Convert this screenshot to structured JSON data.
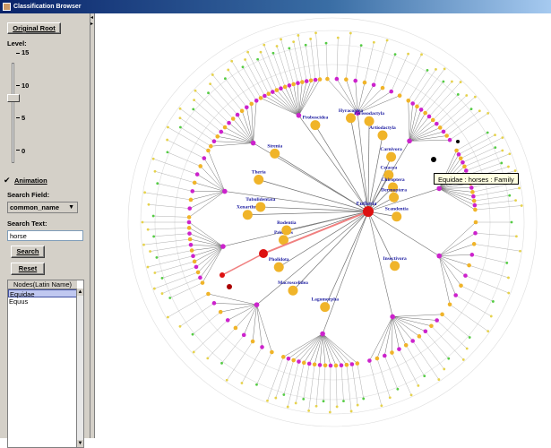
{
  "window": {
    "title": "Classification Browser"
  },
  "sidebar": {
    "original_root_button": "Original Root",
    "level_label": "Level:",
    "level_ticks": [
      "15",
      "10",
      "5",
      "0"
    ],
    "level_value": 11,
    "animation_label": "Animation",
    "animation_checked": true,
    "search_field_label": "Search Field:",
    "search_field_value": "common_name",
    "search_text_label": "Search Text:",
    "search_text_value": "horse",
    "search_button": "Search",
    "reset_button": "Reset",
    "nodes_header": "Nodes(Latin Name)",
    "nodes": [
      "Equidae",
      "Equus"
    ]
  },
  "tree": {
    "center_label": "Eutheria",
    "tooltip": "Equidae : horses : Family",
    "labels": [
      "Xenarthra",
      "Tubulidentata",
      "Theria",
      "Sirenia",
      "Proboscidea",
      "Hyracoidea",
      "Perissodactyla",
      "Artiodactyla",
      "Carnivora",
      "Cetacea",
      "Chiroptera",
      "Dermoptera",
      "Scandentia",
      "Insectivora",
      "Lagomorpha",
      "Macroscelidea",
      "Pholidota",
      "Primates",
      "Rodentia"
    ],
    "colors": {
      "magenta": "#cc22cc",
      "gold": "#f0b429",
      "green": "#55cc44",
      "red": "#dd1111",
      "yellow": "#e6d24c",
      "edge": "#707070",
      "path": "#f08080"
    }
  }
}
